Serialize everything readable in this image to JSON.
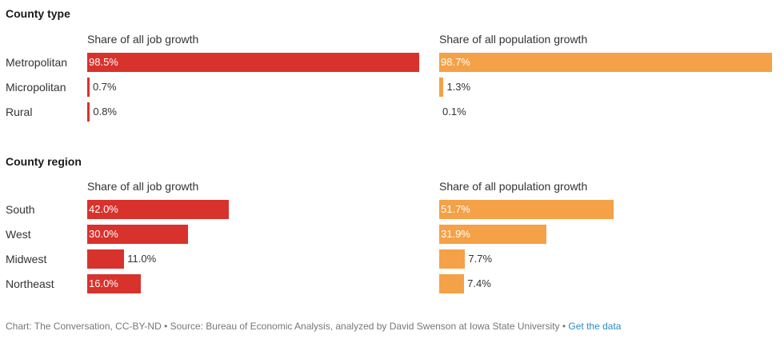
{
  "colors": {
    "job": "#d8322c",
    "pop": "#f4a147"
  },
  "footer": {
    "credit": "Chart: The Conversation, CC-BY-ND • Source: Bureau of Economic Analysis, analyzed by David Swenson at Iowa State University • ",
    "link": "Get the data"
  },
  "chart_data": [
    {
      "type": "bar",
      "title": "County type",
      "categories": [
        "Metropolitan",
        "Micropolitan",
        "Rural"
      ],
      "series": [
        {
          "name": "Share of all job growth",
          "values": [
            98.5,
            0.7,
            0.8
          ],
          "labels": [
            "98.5%",
            "0.7%",
            "0.8%"
          ]
        },
        {
          "name": "Share of all population growth",
          "values": [
            98.7,
            1.3,
            0.1
          ],
          "labels": [
            "98.7%",
            "1.3%",
            "0.1%"
          ]
        }
      ],
      "xlim": [
        0,
        100
      ]
    },
    {
      "type": "bar",
      "title": "County region",
      "categories": [
        "South",
        "West",
        "Midwest",
        "Northeast"
      ],
      "series": [
        {
          "name": "Share of all job growth",
          "values": [
            42.0,
            30.0,
            11.0,
            16.0
          ],
          "labels": [
            "42.0%",
            "30.0%",
            "11.0%",
            "16.0%"
          ]
        },
        {
          "name": "Share of all population growth",
          "values": [
            51.7,
            31.9,
            7.7,
            7.4
          ],
          "labels": [
            "51.7%",
            "31.9%",
            "7.7%",
            "7.4%"
          ]
        }
      ],
      "xlim": [
        0,
        100
      ]
    }
  ]
}
